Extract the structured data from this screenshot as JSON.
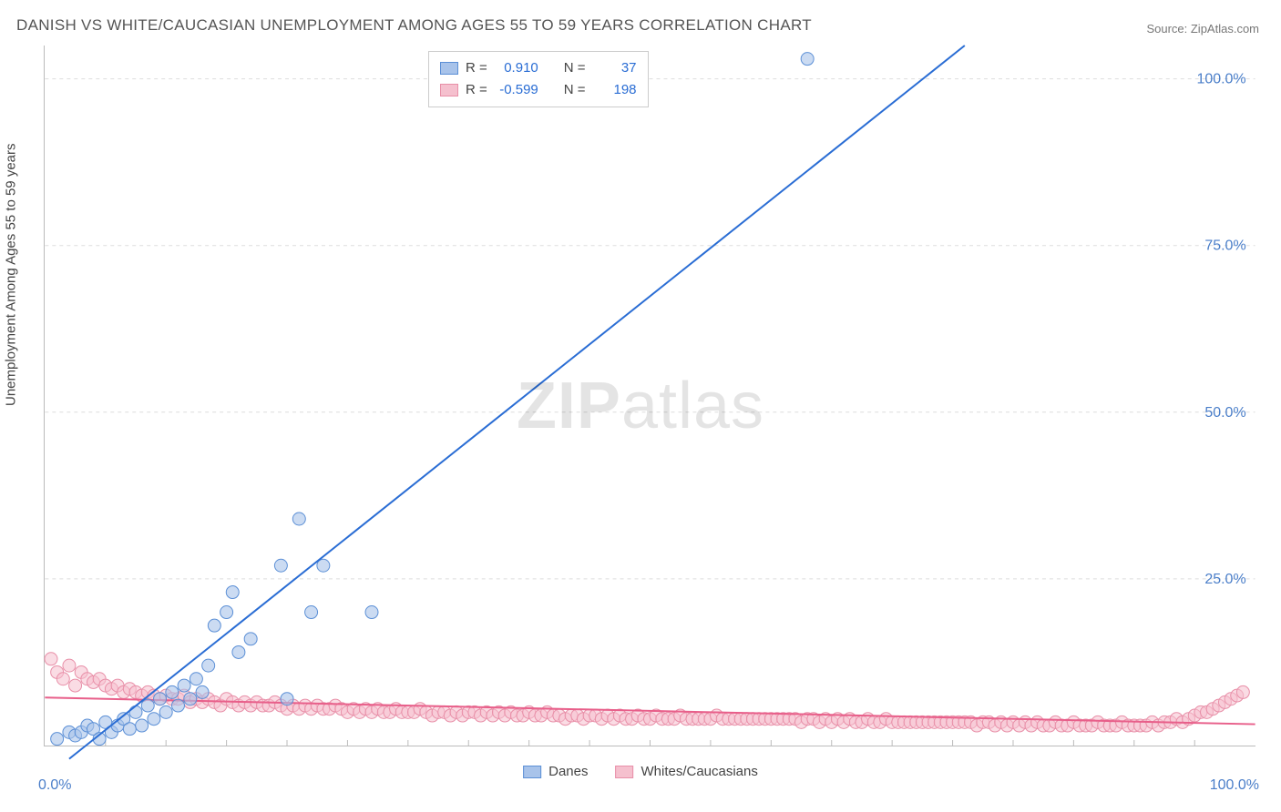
{
  "title": "DANISH VS WHITE/CAUCASIAN UNEMPLOYMENT AMONG AGES 55 TO 59 YEARS CORRELATION CHART",
  "source_label": "Source: ZipAtlas.com",
  "watermark": {
    "bold": "ZIP",
    "rest": "atlas"
  },
  "yaxis_label": "Unemployment Among Ages 55 to 59 years",
  "chart": {
    "type": "scatter",
    "background_color": "#ffffff",
    "grid_color": "#dddddd",
    "axis_color": "#bbbbbb",
    "xlim": [
      0,
      100
    ],
    "ylim": [
      0,
      105
    ],
    "xtick_labels": {
      "min": "0.0%",
      "max": "100.0%"
    },
    "ytick_labels": [
      "25.0%",
      "50.0%",
      "75.0%",
      "100.0%"
    ],
    "ytick_values": [
      25,
      50,
      75,
      100
    ],
    "xtick_minor_step": 5,
    "series": [
      {
        "name": "Danes",
        "color_fill": "#a8c3ea",
        "color_stroke": "#5b8fd6",
        "marker_radius": 7,
        "marker_opacity": 0.6,
        "line_color": "#2a6dd4",
        "line_width": 2,
        "regression": {
          "x1": 2,
          "y1": -2,
          "x2": 76,
          "y2": 105
        },
        "stats": {
          "R": "0.910",
          "N": "37"
        },
        "points": [
          [
            1,
            1
          ],
          [
            2,
            2
          ],
          [
            2.5,
            1.5
          ],
          [
            3,
            2
          ],
          [
            3.5,
            3
          ],
          [
            4,
            2.5
          ],
          [
            4.5,
            1
          ],
          [
            5,
            3.5
          ],
          [
            5.5,
            2
          ],
          [
            6,
            3
          ],
          [
            6.5,
            4
          ],
          [
            7,
            2.5
          ],
          [
            7.5,
            5
          ],
          [
            8,
            3
          ],
          [
            8.5,
            6
          ],
          [
            9,
            4
          ],
          [
            9.5,
            7
          ],
          [
            10,
            5
          ],
          [
            10.5,
            8
          ],
          [
            11,
            6
          ],
          [
            11.5,
            9
          ],
          [
            12,
            7
          ],
          [
            12.5,
            10
          ],
          [
            13,
            8
          ],
          [
            13.5,
            12
          ],
          [
            14,
            18
          ],
          [
            15,
            20
          ],
          [
            15.5,
            23
          ],
          [
            16,
            14
          ],
          [
            17,
            16
          ],
          [
            19.5,
            27
          ],
          [
            21,
            34
          ],
          [
            22,
            20
          ],
          [
            23,
            27
          ],
          [
            27,
            20
          ],
          [
            20,
            7
          ],
          [
            63,
            103
          ]
        ]
      },
      {
        "name": "Whites/Caucasians",
        "color_fill": "#f5c0ce",
        "color_stroke": "#e88fa8",
        "marker_radius": 7,
        "marker_opacity": 0.55,
        "line_color": "#e85f8a",
        "line_width": 2,
        "regression": {
          "x1": 0,
          "y1": 7.2,
          "x2": 100,
          "y2": 3.2
        },
        "stats": {
          "R": "-0.599",
          "N": "198"
        },
        "points": [
          [
            0.5,
            13
          ],
          [
            1,
            11
          ],
          [
            1.5,
            10
          ],
          [
            2,
            12
          ],
          [
            2.5,
            9
          ],
          [
            3,
            11
          ],
          [
            3.5,
            10
          ],
          [
            4,
            9.5
          ],
          [
            4.5,
            10
          ],
          [
            5,
            9
          ],
          [
            5.5,
            8.5
          ],
          [
            6,
            9
          ],
          [
            6.5,
            8
          ],
          [
            7,
            8.5
          ],
          [
            7.5,
            8
          ],
          [
            8,
            7.5
          ],
          [
            8.5,
            8
          ],
          [
            9,
            7.5
          ],
          [
            9.5,
            7
          ],
          [
            10,
            7.5
          ],
          [
            10.5,
            7
          ],
          [
            11,
            7
          ],
          [
            11.5,
            7.5
          ],
          [
            12,
            6.5
          ],
          [
            12.5,
            7
          ],
          [
            13,
            6.5
          ],
          [
            13.5,
            7
          ],
          [
            14,
            6.5
          ],
          [
            14.5,
            6
          ],
          [
            15,
            7
          ],
          [
            15.5,
            6.5
          ],
          [
            16,
            6
          ],
          [
            16.5,
            6.5
          ],
          [
            17,
            6
          ],
          [
            17.5,
            6.5
          ],
          [
            18,
            6
          ],
          [
            18.5,
            6
          ],
          [
            19,
            6.5
          ],
          [
            19.5,
            6
          ],
          [
            20,
            5.5
          ],
          [
            20.5,
            6
          ],
          [
            21,
            5.5
          ],
          [
            21.5,
            6
          ],
          [
            22,
            5.5
          ],
          [
            22.5,
            6
          ],
          [
            23,
            5.5
          ],
          [
            23.5,
            5.5
          ],
          [
            24,
            6
          ],
          [
            24.5,
            5.5
          ],
          [
            25,
            5
          ],
          [
            25.5,
            5.5
          ],
          [
            26,
            5
          ],
          [
            26.5,
            5.5
          ],
          [
            27,
            5
          ],
          [
            27.5,
            5.5
          ],
          [
            28,
            5
          ],
          [
            28.5,
            5
          ],
          [
            29,
            5.5
          ],
          [
            29.5,
            5
          ],
          [
            30,
            5
          ],
          [
            30.5,
            5
          ],
          [
            31,
            5.5
          ],
          [
            31.5,
            5
          ],
          [
            32,
            4.5
          ],
          [
            32.5,
            5
          ],
          [
            33,
            5
          ],
          [
            33.5,
            4.5
          ],
          [
            34,
            5
          ],
          [
            34.5,
            4.5
          ],
          [
            35,
            5
          ],
          [
            35.5,
            5
          ],
          [
            36,
            4.5
          ],
          [
            36.5,
            5
          ],
          [
            37,
            4.5
          ],
          [
            37.5,
            5
          ],
          [
            38,
            4.5
          ],
          [
            38.5,
            5
          ],
          [
            39,
            4.5
          ],
          [
            39.5,
            4.5
          ],
          [
            40,
            5
          ],
          [
            40.5,
            4.5
          ],
          [
            41,
            4.5
          ],
          [
            41.5,
            5
          ],
          [
            42,
            4.5
          ],
          [
            42.5,
            4.5
          ],
          [
            43,
            4
          ],
          [
            43.5,
            4.5
          ],
          [
            44,
            4.5
          ],
          [
            44.5,
            4
          ],
          [
            45,
            4.5
          ],
          [
            45.5,
            4.5
          ],
          [
            46,
            4
          ],
          [
            46.5,
            4.5
          ],
          [
            47,
            4
          ],
          [
            47.5,
            4.5
          ],
          [
            48,
            4
          ],
          [
            48.5,
            4
          ],
          [
            49,
            4.5
          ],
          [
            49.5,
            4
          ],
          [
            50,
            4
          ],
          [
            50.5,
            4.5
          ],
          [
            51,
            4
          ],
          [
            51.5,
            4
          ],
          [
            52,
            4
          ],
          [
            52.5,
            4.5
          ],
          [
            53,
            4
          ],
          [
            53.5,
            4
          ],
          [
            54,
            4
          ],
          [
            54.5,
            4
          ],
          [
            55,
            4
          ],
          [
            55.5,
            4.5
          ],
          [
            56,
            4
          ],
          [
            56.5,
            4
          ],
          [
            57,
            4
          ],
          [
            57.5,
            4
          ],
          [
            58,
            4
          ],
          [
            58.5,
            4
          ],
          [
            59,
            4
          ],
          [
            59.5,
            4
          ],
          [
            60,
            4
          ],
          [
            60.5,
            4
          ],
          [
            61,
            4
          ],
          [
            61.5,
            4
          ],
          [
            62,
            4
          ],
          [
            62.5,
            3.5
          ],
          [
            63,
            4
          ],
          [
            63.5,
            4
          ],
          [
            64,
            3.5
          ],
          [
            64.5,
            4
          ],
          [
            65,
            3.5
          ],
          [
            65.5,
            4
          ],
          [
            66,
            3.5
          ],
          [
            66.5,
            4
          ],
          [
            67,
            3.5
          ],
          [
            67.5,
            3.5
          ],
          [
            68,
            4
          ],
          [
            68.5,
            3.5
          ],
          [
            69,
            3.5
          ],
          [
            69.5,
            4
          ],
          [
            70,
            3.5
          ],
          [
            70.5,
            3.5
          ],
          [
            71,
            3.5
          ],
          [
            71.5,
            3.5
          ],
          [
            72,
            3.5
          ],
          [
            72.5,
            3.5
          ],
          [
            73,
            3.5
          ],
          [
            73.5,
            3.5
          ],
          [
            74,
            3.5
          ],
          [
            74.5,
            3.5
          ],
          [
            75,
            3.5
          ],
          [
            75.5,
            3.5
          ],
          [
            76,
            3.5
          ],
          [
            76.5,
            3.5
          ],
          [
            77,
            3
          ],
          [
            77.5,
            3.5
          ],
          [
            78,
            3.5
          ],
          [
            78.5,
            3
          ],
          [
            79,
            3.5
          ],
          [
            79.5,
            3
          ],
          [
            80,
            3.5
          ],
          [
            80.5,
            3
          ],
          [
            81,
            3.5
          ],
          [
            81.5,
            3
          ],
          [
            82,
            3.5
          ],
          [
            82.5,
            3
          ],
          [
            83,
            3
          ],
          [
            83.5,
            3.5
          ],
          [
            84,
            3
          ],
          [
            84.5,
            3
          ],
          [
            85,
            3.5
          ],
          [
            85.5,
            3
          ],
          [
            86,
            3
          ],
          [
            86.5,
            3
          ],
          [
            87,
            3.5
          ],
          [
            87.5,
            3
          ],
          [
            88,
            3
          ],
          [
            88.5,
            3
          ],
          [
            89,
            3.5
          ],
          [
            89.5,
            3
          ],
          [
            90,
            3
          ],
          [
            90.5,
            3
          ],
          [
            91,
            3
          ],
          [
            91.5,
            3.5
          ],
          [
            92,
            3
          ],
          [
            92.5,
            3.5
          ],
          [
            93,
            3.5
          ],
          [
            93.5,
            4
          ],
          [
            94,
            3.5
          ],
          [
            94.5,
            4
          ],
          [
            95,
            4.5
          ],
          [
            95.5,
            5
          ],
          [
            96,
            5
          ],
          [
            96.5,
            5.5
          ],
          [
            97,
            6
          ],
          [
            97.5,
            6.5
          ],
          [
            98,
            7
          ],
          [
            98.5,
            7.5
          ],
          [
            99,
            8
          ]
        ]
      }
    ]
  },
  "legend_stats_labels": {
    "R": "R =",
    "N": "N ="
  },
  "bottom_legend": [
    {
      "label": "Danes",
      "fill": "#a8c3ea",
      "stroke": "#5b8fd6"
    },
    {
      "label": "Whites/Caucasians",
      "fill": "#f5c0ce",
      "stroke": "#e88fa8"
    }
  ]
}
